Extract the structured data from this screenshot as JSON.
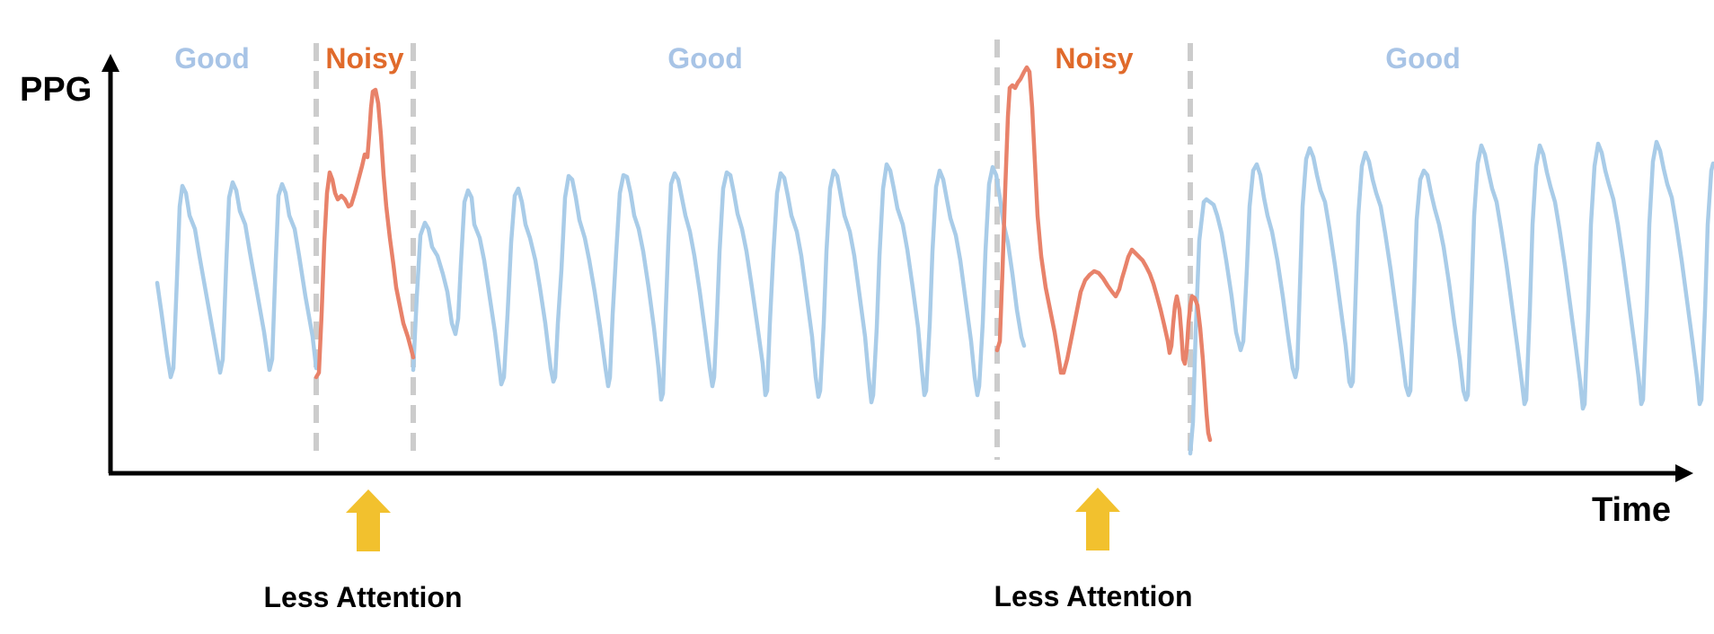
{
  "axes": {
    "y_label": "PPG",
    "x_label": "Time"
  },
  "segments": [
    {
      "label": "Good",
      "quality": "good"
    },
    {
      "label": "Noisy",
      "quality": "noisy"
    },
    {
      "label": "Good",
      "quality": "good"
    },
    {
      "label": "Noisy",
      "quality": "noisy"
    },
    {
      "label": "Good",
      "quality": "good"
    }
  ],
  "annotations": [
    {
      "text": "Less Attention",
      "target_segment": 1
    },
    {
      "text": "Less Attention",
      "target_segment": 3
    }
  ],
  "colors": {
    "good": "#a9cce8",
    "noisy": "#e8826a",
    "noisy_label": "#e06a2b",
    "good_label": "#a8c4e6",
    "divider": "#cccccc",
    "axis": "#000000",
    "arrow": "#f2c12e"
  }
}
